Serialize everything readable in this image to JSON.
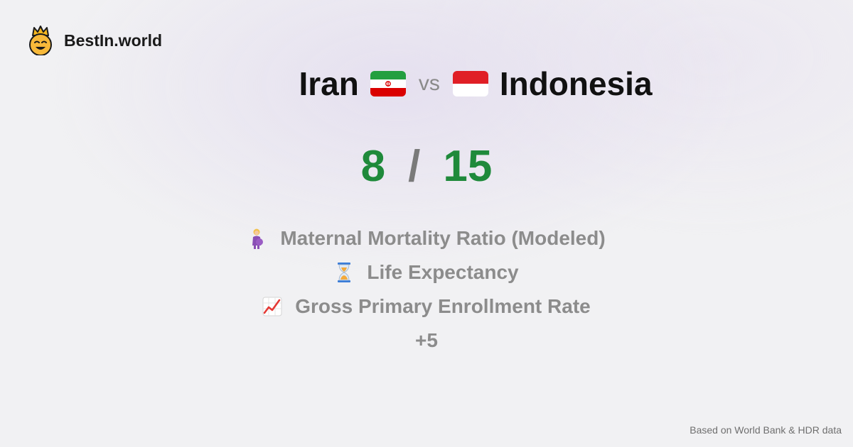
{
  "brand": {
    "name": "BestIn.world",
    "logo_icon": "crowned-smiley-icon"
  },
  "comparison": {
    "left_country": "Iran",
    "left_flag_icon": "iran-flag-icon",
    "vs_label": "vs",
    "right_country": "Indonesia",
    "right_flag_icon": "indonesia-flag-icon"
  },
  "score": {
    "left": "8",
    "separator": "/",
    "right": "15",
    "color": "#1f8a3b"
  },
  "metrics": [
    {
      "label": "Maternal Mortality Ratio (Modeled)",
      "icon": "pregnant-woman-icon"
    },
    {
      "label": "Life Expectancy",
      "icon": "hourglass-icon"
    },
    {
      "label": "Gross Primary Enrollment Rate",
      "icon": "chart-increasing-icon"
    }
  ],
  "more_label": "+5",
  "footer": {
    "source": "Based on World Bank & HDR data"
  }
}
